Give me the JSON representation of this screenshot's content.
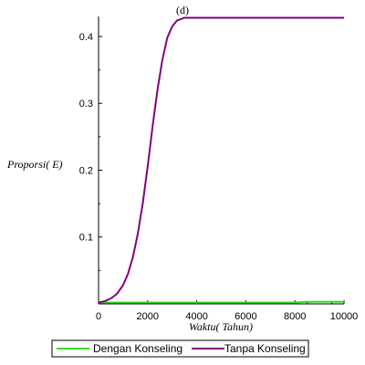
{
  "chart_data": {
    "type": "line",
    "title": "(d)",
    "xlabel": "Waktu( Tahun)",
    "ylabel": "Proporsi( E)",
    "xlim": [
      0,
      10000
    ],
    "ylim": [
      0,
      0.43
    ],
    "xticks": [
      0,
      2000,
      4000,
      6000,
      8000,
      10000
    ],
    "yticks": [
      0.1,
      0.2,
      0.3,
      0.4
    ],
    "grid": false,
    "legend_position": "bottom",
    "series": [
      {
        "name": "Dengan Konseling",
        "color": "#33dd22",
        "x": [
          0,
          1000,
          2000,
          3000,
          4000,
          5000,
          6000,
          7000,
          8000,
          8500,
          9000,
          10000
        ],
        "y": [
          0.002,
          0.002,
          0.002,
          0.002,
          0.002,
          0.002,
          0.002,
          0.002,
          0.002,
          0.003,
          0.003,
          0.003
        ]
      },
      {
        "name": "Tanpa Konseling",
        "color": "#800080",
        "x": [
          0,
          250,
          500,
          750,
          1000,
          1200,
          1400,
          1600,
          1800,
          2000,
          2200,
          2400,
          2600,
          2800,
          3000,
          3200,
          3500,
          4000,
          5000,
          6000,
          8000,
          10000
        ],
        "y": [
          0.002,
          0.004,
          0.008,
          0.015,
          0.028,
          0.045,
          0.07,
          0.105,
          0.15,
          0.205,
          0.265,
          0.32,
          0.365,
          0.398,
          0.415,
          0.424,
          0.428,
          0.428,
          0.428,
          0.428,
          0.428,
          0.428
        ]
      }
    ]
  }
}
